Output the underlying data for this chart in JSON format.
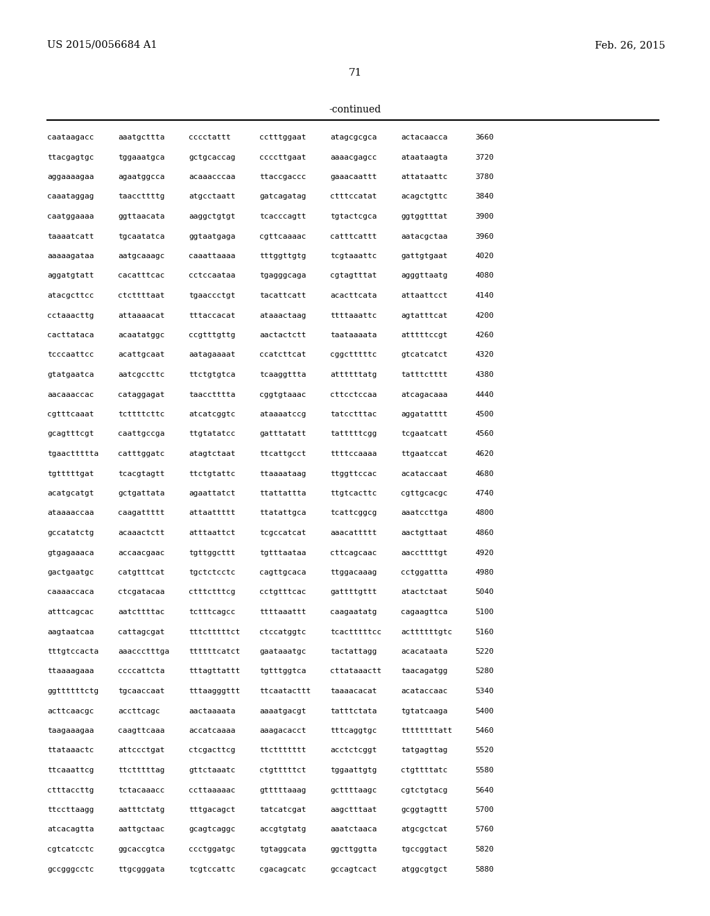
{
  "header_left": "US 2015/0056684 A1",
  "header_right": "Feb. 26, 2015",
  "page_number": "71",
  "continued_label": "-continued",
  "background_color": "#ffffff",
  "text_color": "#000000",
  "sequence_lines": [
    [
      "caataagacc",
      "aaatgcttta",
      "cccctattt",
      "cctttggaat",
      "atagcgcgca",
      "actacaacca",
      "3660"
    ],
    [
      "ttacgagtgc",
      "tggaaatgca",
      "gctgcaccag",
      "ccccttgaat",
      "aaaacgagcc",
      "ataataagta",
      "3720"
    ],
    [
      "aggaaaagaa",
      "agaatggcca",
      "acaaacccaa",
      "ttaccgaccc",
      "gaaacaattt",
      "attataattc",
      "3780"
    ],
    [
      "caaataggag",
      "taaccttttg",
      "atgcctaatt",
      "gatcagatag",
      "ctttccatat",
      "acagctgttc",
      "3840"
    ],
    [
      "caatggaaaa",
      "ggttaacata",
      "aaggctgtgt",
      "tcacccagtt",
      "tgtactcgca",
      "ggtggtttat",
      "3900"
    ],
    [
      "taaaatcatt",
      "tgcaatatca",
      "ggtaatgaga",
      "cgttcaaaac",
      "catttcattt",
      "aatacgctaa",
      "3960"
    ],
    [
      "aaaaagataa",
      "aatgcaaagc",
      "caaattaaaa",
      "tttggttgtg",
      "tcgtaaattc",
      "gattgtgaat",
      "4020"
    ],
    [
      "aggatgtatt",
      "cacatttcac",
      "cctccaataa",
      "tgagggcaga",
      "cgtagtttat",
      "agggttaatg",
      "4080"
    ],
    [
      "atacgcttcc",
      "ctcttttaat",
      "tgaaccctgt",
      "tacattcatt",
      "acacttcata",
      "attaattcct",
      "4140"
    ],
    [
      "cctaaacttg",
      "attaaaacat",
      "tttaccacat",
      "ataaactaag",
      "ttttaaattc",
      "agtatttcat",
      "4200"
    ],
    [
      "cacttataca",
      "acaatatggc",
      "ccgtttgttg",
      "aactactctt",
      "taataaaata",
      "atttttccgt",
      "4260"
    ],
    [
      "tcccaattcc",
      "acattgcaat",
      "aatagaaaat",
      "ccatcttcat",
      "cggctttttc",
      "gtcatcatct",
      "4320"
    ],
    [
      "gtatgaatca",
      "aatcgccttc",
      "ttctgtgtca",
      "tcaaggttta",
      "attttttatg",
      "tatttctttt",
      "4380"
    ],
    [
      "aacaaaccac",
      "cataggagat",
      "taacctttta",
      "cggtgtaaac",
      "cttcctccaa",
      "atcagacaaa",
      "4440"
    ],
    [
      "cgtttcaaat",
      "tcttttcttc",
      "atcatcggtc",
      "ataaaatccg",
      "tatcctttac",
      "aggatatttt",
      "4500"
    ],
    [
      "gcagtttcgt",
      "caattgccga",
      "ttgtatatcc",
      "gatttatatt",
      "tatttttcgg",
      "tcgaatcatt",
      "4560"
    ],
    [
      "tgaacttttta",
      "catttggatc",
      "atagtctaat",
      "ttcattgcct",
      "ttttccaaaa",
      "ttgaatccat",
      "4620"
    ],
    [
      "tgtttttgat",
      "tcacgtagtt",
      "ttctgtattc",
      "ttaaaataag",
      "ttggttccac",
      "acataccaat",
      "4680"
    ],
    [
      "acatgcatgt",
      "gctgattata",
      "agaattatct",
      "ttattattta",
      "ttgtcacttc",
      "cgttgcacgc",
      "4740"
    ],
    [
      "ataaaaccaa",
      "caagattttt",
      "attaattttt",
      "ttatattgca",
      "tcattcggcg",
      "aaatccttga",
      "4800"
    ],
    [
      "gccatatctg",
      "acaaactctt",
      "atttaattct",
      "tcgccatcat",
      "aaacattttt",
      "aactgttaat",
      "4860"
    ],
    [
      "gtgagaaaca",
      "accaacgaac",
      "tgttggcttt",
      "tgtttaataa",
      "cttcagcaac",
      "aaccttttgt",
      "4920"
    ],
    [
      "gactgaatgc",
      "catgtttcat",
      "tgctctcctc",
      "cagttgcaca",
      "ttggacaaag",
      "cctggattta",
      "4980"
    ],
    [
      "caaaaccaca",
      "ctcgatacaa",
      "ctttctttcg",
      "cctgtttcac",
      "gattttgttt",
      "atactctaat",
      "5040"
    ],
    [
      "atttcagcac",
      "aatcttttac",
      "tctttcagcc",
      "ttttaaattt",
      "caagaatatg",
      "cagaagttca",
      "5100"
    ],
    [
      "aagtaatcaa",
      "cattagcgat",
      "tttctttttct",
      "ctccatggtc",
      "tcactttttcc",
      "acttttttgtc",
      "5160"
    ],
    [
      "tttgtccacta",
      "aaaccctttga",
      "ttttttcatct",
      "gaataaatgc",
      "tactattagg",
      "acacataata",
      "5220"
    ],
    [
      "ttaaaagaaa",
      "ccccattcta",
      "tttagttattt",
      "tgtttggtca",
      "cttataaactt",
      "taacagatgg",
      "5280"
    ],
    [
      "ggttttttctg",
      "tgcaaccaat",
      "tttaagggttt",
      "ttcaatacttt",
      "taaaacacat",
      "acataccaac",
      "5340"
    ],
    [
      "acttcaacgc",
      "accttcagc",
      "aactaaaata",
      "aaaatgacgt",
      "tatttctata",
      "tgtatcaaga",
      "5400"
    ],
    [
      "taagaaagaa",
      "caagttcaaa",
      "accatcaaaa",
      "aaagacacct",
      "tttcaggtgc",
      "ttttttttatt",
      "5460"
    ],
    [
      "ttataaactc",
      "attccctgat",
      "ctcgacttcg",
      "ttcttttttt",
      "acctctcggt",
      "tatgagttag",
      "5520"
    ],
    [
      "ttcaaattcg",
      "ttctttttag",
      "gttctaaatc",
      "ctgtttttct",
      "tggaattgtg",
      "ctgttttatc",
      "5580"
    ],
    [
      "ctttaccttg",
      "tctacaaacc",
      "ccttaaaaac",
      "gtttttaaag",
      "gcttttaagc",
      "cgtctgtacg",
      "5640"
    ],
    [
      "ttccttaagg",
      "aatttctatg",
      "tttgacagct",
      "tatcatcgat",
      "aagctttaat",
      "gcggtagttt",
      "5700"
    ],
    [
      "atcacagtta",
      "aattgctaac",
      "gcagtcaggc",
      "accgtgtatg",
      "aaatctaaca",
      "atgcgctcat",
      "5760"
    ],
    [
      "cgtcatcctc",
      "ggcaccgtca",
      "ccctggatgc",
      "tgtaggcata",
      "ggcttggtta",
      "tgccggtact",
      "5820"
    ],
    [
      "gccgggcctc",
      "ttgcgggata",
      "tcgtccattc",
      "cgacagcatc",
      "gccagtcact",
      "atggcgtgct",
      "5880"
    ]
  ]
}
